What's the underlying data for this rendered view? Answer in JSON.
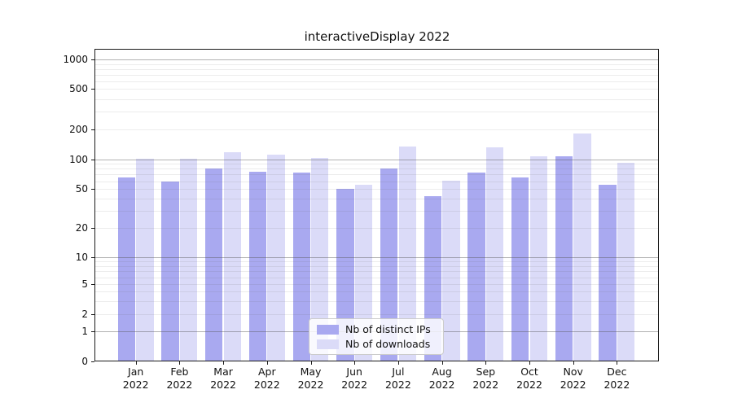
{
  "chart_data": {
    "type": "bar",
    "title": "interactiveDisplay 2022",
    "xlabel": "",
    "ylabel": "",
    "y_scale": "symlog",
    "ylim": [
      0,
      1400
    ],
    "y_ticks": [
      0,
      1,
      2,
      5,
      10,
      20,
      50,
      100,
      200,
      500,
      1000
    ],
    "grid": "horizontal major and minor log gridlines, drawn over bars",
    "legend_position": "lower center inside plot",
    "x_labels": [
      {
        "month": "Jan",
        "year": "2022"
      },
      {
        "month": "Feb",
        "year": "2022"
      },
      {
        "month": "Mar",
        "year": "2022"
      },
      {
        "month": "Apr",
        "year": "2022"
      },
      {
        "month": "May",
        "year": "2022"
      },
      {
        "month": "Jun",
        "year": "2022"
      },
      {
        "month": "Jul",
        "year": "2022"
      },
      {
        "month": "Aug",
        "year": "2022"
      },
      {
        "month": "Sep",
        "year": "2022"
      },
      {
        "month": "Oct",
        "year": "2022"
      },
      {
        "month": "Nov",
        "year": "2022"
      },
      {
        "month": "Dec",
        "year": "2022"
      }
    ],
    "series": [
      {
        "name": "Nb of distinct IPs",
        "color": "#a9a9f0",
        "values": [
          65,
          60,
          80,
          75,
          74,
          50,
          80,
          42,
          74,
          66,
          107,
          55
        ]
      },
      {
        "name": "Nb of downloads",
        "color": "#dbdbf8",
        "values": [
          102,
          101,
          119,
          112,
          104,
          55,
          135,
          61,
          132,
          108,
          184,
          92
        ]
      }
    ]
  }
}
